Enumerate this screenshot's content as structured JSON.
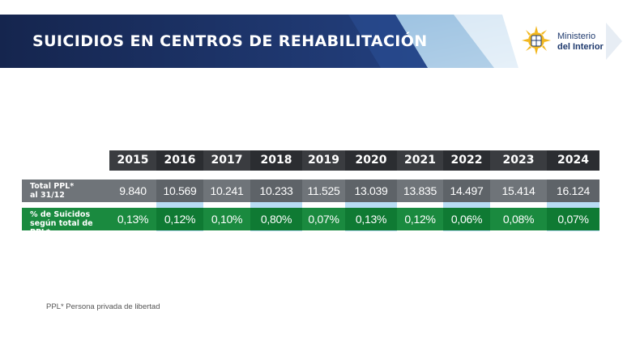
{
  "header": {
    "title": "SUICIDIOS EN CENTROS DE REHABILITACIÓN",
    "logo_line1": "Ministerio",
    "logo_line2": "del Interior"
  },
  "table": {
    "years": [
      "2015",
      "2016",
      "2017",
      "2018",
      "2019",
      "2020",
      "2021",
      "2022",
      "2023",
      "2024"
    ],
    "rows": [
      {
        "label": "Total PPL*\nal 31/12",
        "values": [
          "9.840",
          "10.569",
          "10.241",
          "10.233",
          "11.525",
          "13.039",
          "13.835",
          "14.497",
          "15.414",
          "16.124"
        ]
      },
      {
        "label": "% de Suicidos\nsegún total de PPL*",
        "values": [
          "0,13%",
          "0,12%",
          "0,10%",
          "0,80%",
          "0,07%",
          "0,13%",
          "0,12%",
          "0,06%",
          "0,08%",
          "0,07%"
        ]
      }
    ]
  },
  "footnote": "PPL* Persona privada de libertad",
  "colors": {
    "banner_dark": "#1b2c5c",
    "header_row": "#3a3c40",
    "ppl_row": "#6f7479",
    "pct_row": "#1a8a3f",
    "column_band": "#b8dcf3"
  },
  "icons": {
    "logo": "uruguay-sun-emblem-icon"
  }
}
